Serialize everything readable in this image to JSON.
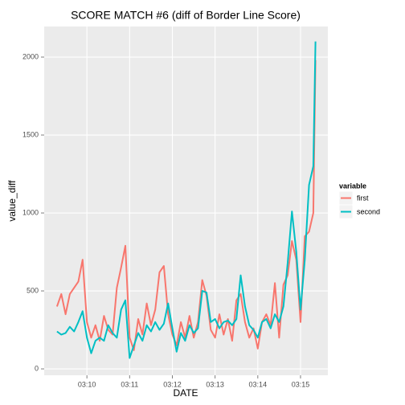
{
  "chart_data": {
    "type": "line",
    "title": "SCORE MATCH #6 (diff of Border Line Score)",
    "x_label": "DATE",
    "y_label": "value_diff",
    "legend_title": "variable",
    "legend_position": "right",
    "grid": true,
    "x": [
      9.3,
      9.4,
      9.5,
      9.6,
      9.7,
      9.8,
      9.9,
      10.0,
      10.1,
      10.2,
      10.3,
      10.4,
      10.5,
      10.6,
      10.7,
      10.8,
      10.9,
      11.0,
      11.1,
      11.2,
      11.3,
      11.4,
      11.5,
      11.6,
      11.7,
      11.8,
      11.9,
      12.0,
      12.1,
      12.2,
      12.3,
      12.4,
      12.5,
      12.6,
      12.7,
      12.8,
      12.9,
      13.0,
      13.1,
      13.2,
      13.3,
      13.4,
      13.5,
      13.6,
      13.7,
      13.8,
      13.9,
      14.0,
      14.1,
      14.2,
      14.3,
      14.4,
      14.5,
      14.6,
      14.7,
      14.8,
      14.9,
      15.0,
      15.1,
      15.2,
      15.3,
      15.35
    ],
    "series": [
      {
        "name": "first",
        "color": "#F8766D",
        "values": [
          400,
          480,
          350,
          480,
          520,
          560,
          700,
          300,
          200,
          280,
          180,
          340,
          250,
          220,
          520,
          650,
          790,
          200,
          120,
          320,
          220,
          420,
          280,
          380,
          620,
          660,
          350,
          220,
          150,
          300,
          200,
          340,
          200,
          300,
          570,
          470,
          250,
          200,
          350,
          220,
          320,
          180,
          440,
          480,
          300,
          200,
          260,
          130,
          300,
          350,
          280,
          550,
          200,
          540,
          600,
          820,
          700,
          300,
          850,
          880,
          1000,
          1980
        ]
      },
      {
        "name": "second",
        "color": "#00BFC4",
        "values": [
          240,
          220,
          230,
          270,
          240,
          300,
          370,
          200,
          100,
          180,
          200,
          180,
          280,
          230,
          200,
          380,
          440,
          70,
          150,
          230,
          180,
          280,
          240,
          300,
          250,
          290,
          420,
          260,
          110,
          230,
          180,
          280,
          230,
          260,
          500,
          490,
          300,
          320,
          260,
          300,
          310,
          280,
          320,
          600,
          400,
          280,
          250,
          200,
          300,
          320,
          260,
          350,
          300,
          400,
          680,
          1010,
          750,
          380,
          700,
          1180,
          1300,
          2100
        ]
      }
    ],
    "xlim": [
      9.0,
      15.64
    ],
    "ylim": [
      -41,
      2196
    ],
    "xticks": [
      {
        "value": 10,
        "label": "03:10"
      },
      {
        "value": 11,
        "label": "03:11"
      },
      {
        "value": 12,
        "label": "03:12"
      },
      {
        "value": 13,
        "label": "03:13"
      },
      {
        "value": 14,
        "label": "03:14"
      },
      {
        "value": 15,
        "label": "03:15"
      }
    ],
    "yticks": [
      0,
      500,
      1000,
      1500,
      2000
    ]
  }
}
